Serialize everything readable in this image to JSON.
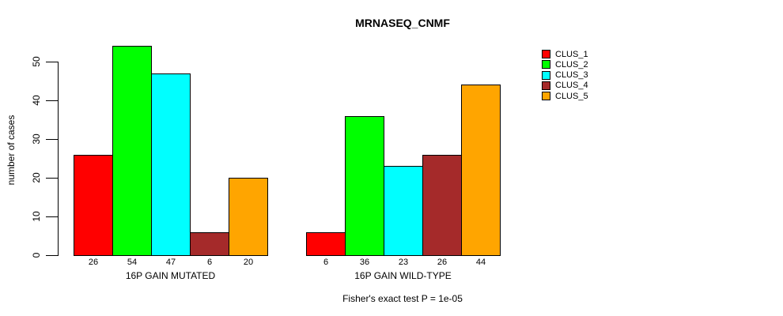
{
  "chart_data": {
    "type": "bar",
    "title": "MRNASEQ_CNMF",
    "ylabel": "number of cases",
    "subtitle": "Fisher's exact test P = 1e-05",
    "ylim": [
      0,
      50
    ],
    "yticks": [
      0,
      10,
      20,
      30,
      40,
      50
    ],
    "grid": false,
    "legend_position": "right-outside",
    "bar_border_color": "#000000",
    "background_color": "#ffffff",
    "categories": [
      "16P GAIN MUTATED",
      "16P GAIN WILD-TYPE"
    ],
    "series": [
      {
        "name": "CLUS_1",
        "color": "#ff0000",
        "values": [
          26,
          6
        ]
      },
      {
        "name": "CLUS_2",
        "color": "#00ff00",
        "values": [
          54,
          36
        ]
      },
      {
        "name": "CLUS_3",
        "color": "#00ffff",
        "values": [
          47,
          23
        ]
      },
      {
        "name": "CLUS_4",
        "color": "#a52a2a",
        "values": [
          6,
          26
        ]
      },
      {
        "name": "CLUS_5",
        "color": "#ffa500",
        "values": [
          20,
          44
        ]
      }
    ],
    "groups": [
      {
        "label": "16P GAIN MUTATED",
        "bar_value_labels": [
          "26",
          "54",
          "47",
          "6",
          "20"
        ]
      },
      {
        "label": "16P GAIN WILD-TYPE",
        "bar_value_labels": [
          "6",
          "36",
          "23",
          "26",
          "44"
        ]
      }
    ]
  }
}
